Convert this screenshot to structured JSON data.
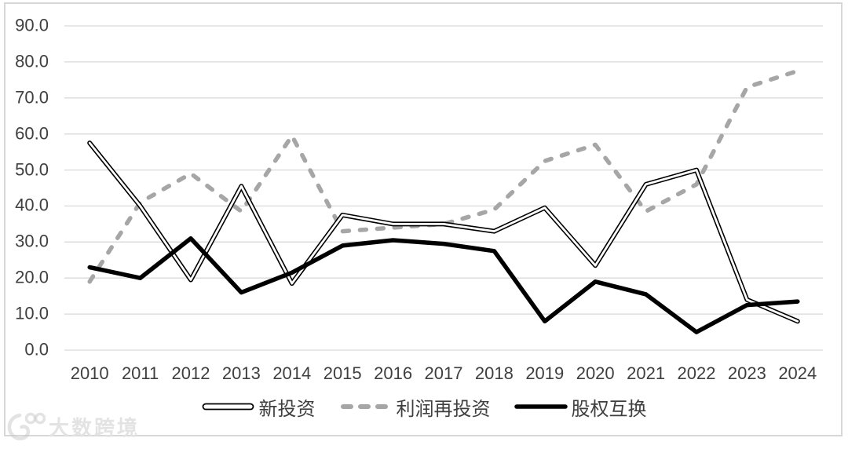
{
  "watermark": {
    "text": "大数跨境"
  },
  "chart_data": {
    "type": "line",
    "categories": [
      "2010",
      "2011",
      "2012",
      "2013",
      "2014",
      "2015",
      "2016",
      "2017",
      "2018",
      "2019",
      "2020",
      "2021",
      "2022",
      "2023",
      "2024"
    ],
    "series": [
      {
        "name": "新投资",
        "line_style": "double-outline",
        "color": "#000000",
        "values": [
          57.5,
          40,
          19.5,
          45.5,
          18.5,
          37.5,
          35,
          35,
          33,
          39.5,
          23.5,
          46,
          50,
          14,
          8
        ]
      },
      {
        "name": "利润再投资",
        "line_style": "dashed",
        "color": "#a6a6a6",
        "values": [
          19,
          41,
          49,
          38.5,
          59.5,
          33,
          34,
          35,
          39,
          52.5,
          57,
          38.5,
          46,
          73,
          77.5
        ]
      },
      {
        "name": "股权互换",
        "line_style": "solid-thick",
        "color": "#000000",
        "values": [
          23,
          20,
          31,
          16,
          21.5,
          29,
          30.5,
          29.5,
          27.5,
          8,
          19,
          15.5,
          5,
          12.5,
          13.5
        ]
      }
    ],
    "xlabel": "",
    "ylabel": "",
    "title": "",
    "ylim": [
      0,
      90
    ],
    "ytick_step": 10,
    "ytick_labels": [
      "0.0",
      "10.0",
      "20.0",
      "30.0",
      "40.0",
      "50.0",
      "60.0",
      "70.0",
      "80.0",
      "90.0"
    ],
    "grid": "horizontal",
    "legend_position": "bottom",
    "colors": {
      "grid": "#d9d9d9",
      "frame_border": "#d7d7d7",
      "axis_text": "#3f3f3f",
      "background": "#ffffff"
    }
  }
}
